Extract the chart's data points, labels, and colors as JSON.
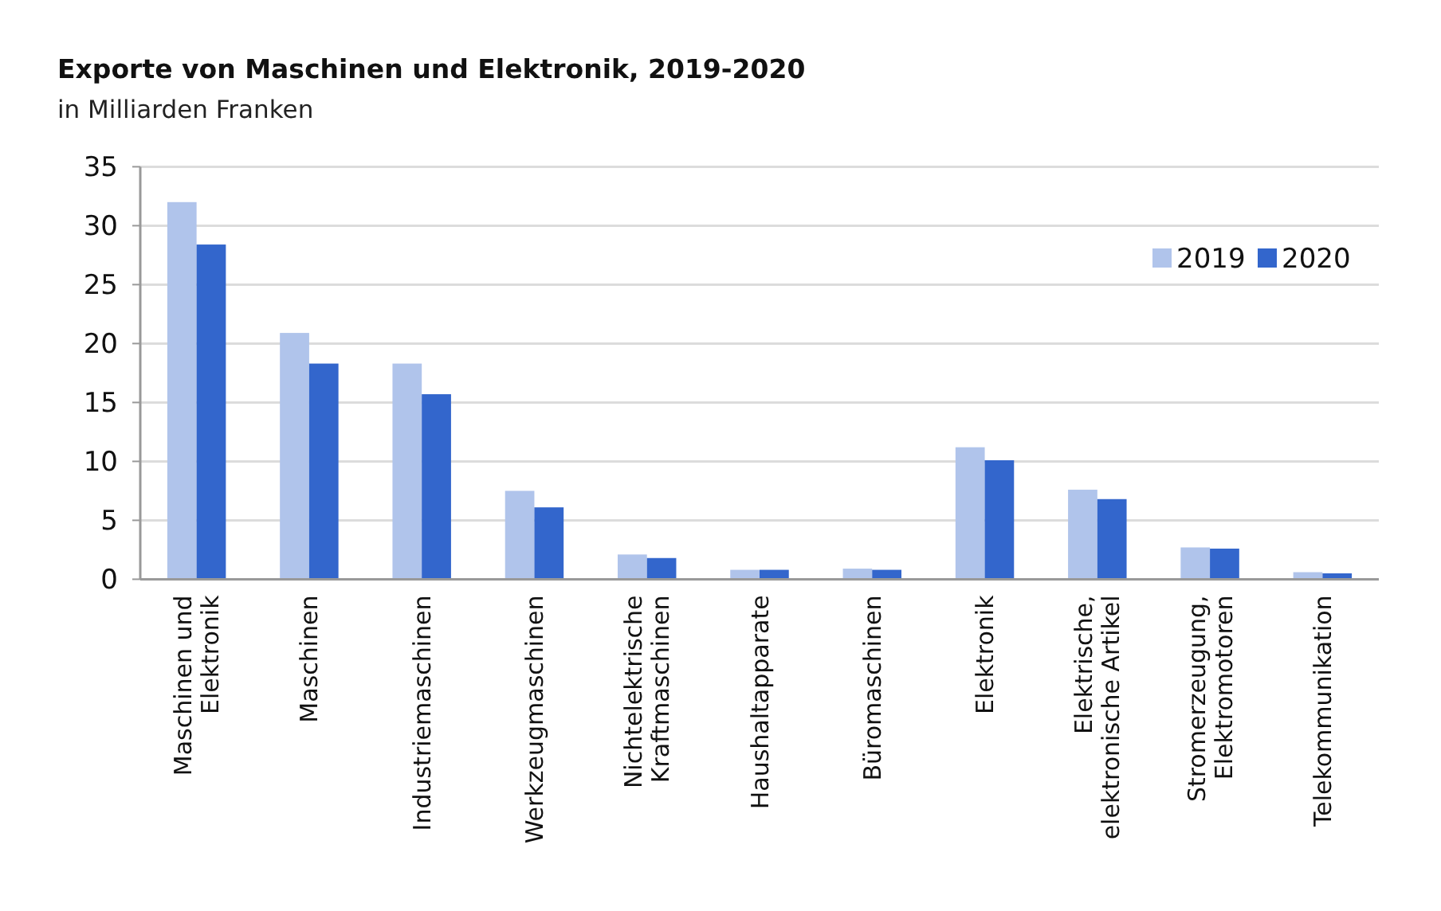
{
  "chart_data": {
    "type": "bar",
    "title": "Exporte von Maschinen und Elektronik, 2019-2020",
    "subtitle": "in Milliarden Franken",
    "categories": [
      "Maschinen und Elektronik",
      "Maschinen",
      "Industriemaschinen",
      "Werkzeugmaschinen",
      "Nichtelektrische Kraftmaschinen",
      "Haushaltapparate",
      "Büromaschinen",
      "Elektronik",
      "Elektrische, elektronische Artikel",
      "Stromerzeugung, Elektromotoren",
      "Telekommunikation"
    ],
    "series": [
      {
        "name": "2019",
        "color": "#b0c4eb",
        "values": [
          32.0,
          20.9,
          18.3,
          7.5,
          2.1,
          0.8,
          0.9,
          11.2,
          7.6,
          2.7,
          0.6
        ]
      },
      {
        "name": "2020",
        "color": "#3366cc",
        "values": [
          28.4,
          18.3,
          15.7,
          6.1,
          1.8,
          0.8,
          0.8,
          10.1,
          6.8,
          2.6,
          0.5
        ]
      }
    ],
    "ylim": [
      0,
      35
    ],
    "yticks": [
      0,
      5,
      10,
      15,
      20,
      25,
      30,
      35
    ],
    "grid": "y",
    "legend": "top right"
  }
}
